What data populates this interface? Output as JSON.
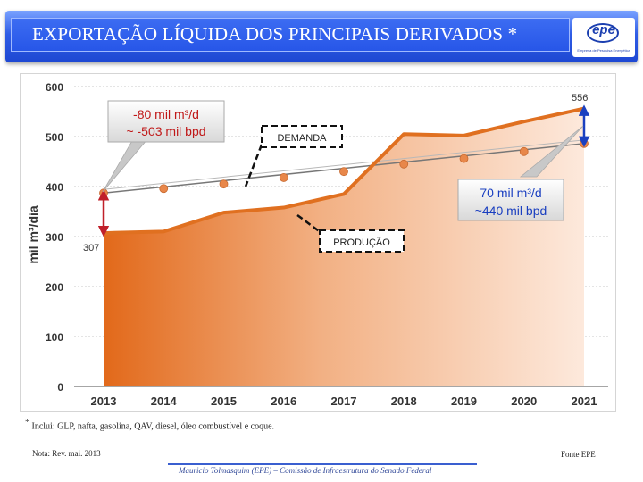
{
  "header": {
    "title": "EXPORTAÇÃO LÍQUIDA DOS PRINCIPAIS DERIVADOS *",
    "logo_text": "epe",
    "logo_caption": "Empresa de Pesquisa Energética"
  },
  "colors": {
    "header_blue": "#2756e8",
    "production_line": "#e07020",
    "demand_line": "#777777",
    "marker": "#e8874a",
    "arrow": "#c0202a",
    "arrow_right": "#1a40c0"
  },
  "chart_data": {
    "type": "area",
    "categories": [
      "2013",
      "2014",
      "2015",
      "2016",
      "2017",
      "2018",
      "2019",
      "2020",
      "2021"
    ],
    "ylabel": "mil m³/dia",
    "ylim": [
      0,
      600
    ],
    "yticks": [
      0,
      100,
      200,
      300,
      400,
      500,
      600
    ],
    "grid": true,
    "series": [
      {
        "name": "PRODUÇÃO",
        "values": [
          307,
          310,
          348,
          358,
          385,
          505,
          502,
          530,
          556
        ]
      },
      {
        "name": "DEMANDA",
        "values": [
          387,
          396,
          405,
          418,
          430,
          445,
          456,
          470,
          486
        ]
      }
    ],
    "annotations": {
      "value_start": "307",
      "value_end": "556",
      "callout_left_line1": "-80 mil m³/d",
      "callout_left_line2": "~ -503 mil bpd",
      "callout_right_line1": "70 mil m³/d",
      "callout_right_line2": "~440 mil bpd",
      "label_demand": "DEMANDA",
      "label_production": "PRODUÇÃO"
    }
  },
  "footer": {
    "footnote_mark": "*",
    "footnote_text": "Inclui: GLP, nafta, gasolina, QAV, diesel, óleo combustível e coque.",
    "nota": "Nota: Rev. mai. 2013",
    "fonte": "Fonte EPE",
    "credit": "Mauricio Tolmasquim (EPE) – Comissão de Infraestrutura do Senado Federal"
  }
}
